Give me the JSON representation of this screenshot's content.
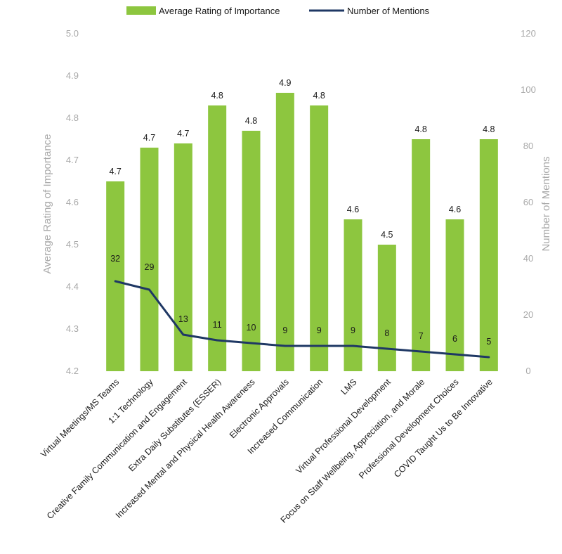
{
  "chart_data": {
    "type": "bar",
    "categories": [
      "Virtual Meetings/MS Teams",
      "1:1 Technology",
      "Creative Family Communication and Engagement",
      "Extra Daily Substitutes (ESSER)",
      "Increased Mental and Physical Health Awareness",
      "Electronic Approvals",
      "Increased Communication",
      "LMS",
      "Virtual Professional Development",
      "Focus on Staff Wellbeing, Appreciation, and Morale",
      "Professional Development Choices",
      "COVID Taught Us to Be Innovative"
    ],
    "series": [
      {
        "name": "Average Rating of Importance",
        "type": "bar",
        "axis": "left",
        "color": "#8dc63f",
        "values": [
          4.65,
          4.73,
          4.74,
          4.83,
          4.77,
          4.86,
          4.83,
          4.56,
          4.5,
          4.75,
          4.56,
          4.75
        ],
        "labels": [
          "4.7",
          "4.7",
          "4.7",
          "4.8",
          "4.8",
          "4.9",
          "4.8",
          "4.6",
          "4.5",
          "4.8",
          "4.6",
          "4.8"
        ]
      },
      {
        "name": "Number of Mentions",
        "type": "line",
        "axis": "right",
        "color": "#1f3864",
        "values": [
          32,
          29,
          13,
          11,
          10,
          9,
          9,
          9,
          8,
          7,
          6,
          5
        ],
        "labels": [
          "32",
          "29",
          "13",
          "11",
          "10",
          "9",
          "9",
          "9",
          "8",
          "7",
          "6",
          "5"
        ]
      }
    ],
    "ylabel": "Average Rating of Importance",
    "ylim": [
      4.2,
      5.0
    ],
    "yticks": [
      "4.2",
      "4.3",
      "4.4",
      "4.5",
      "4.6",
      "4.7",
      "4.8",
      "4.9",
      "5.0"
    ],
    "y2label": "Number of Mentions",
    "y2lim": [
      0,
      120
    ],
    "y2ticks": [
      "0",
      "20",
      "40",
      "60",
      "80",
      "100",
      "120"
    ],
    "grid": false,
    "legend": "top"
  }
}
